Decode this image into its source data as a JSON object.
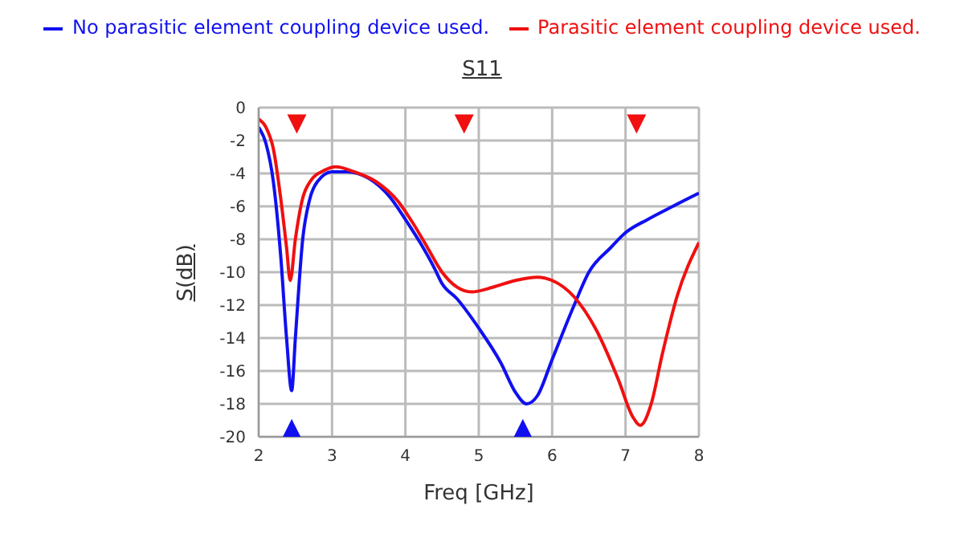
{
  "chart_data": {
    "type": "line",
    "title": "S11",
    "xlabel": "Freq [GHz]",
    "ylabel": "S(dB)",
    "xlim": [
      2,
      8
    ],
    "xticks": [
      2,
      3,
      4,
      5,
      6,
      7,
      8
    ],
    "ylim": [
      -20,
      0
    ],
    "yticks": [
      0,
      -2,
      -4,
      -6,
      -8,
      -10,
      -12,
      -14,
      -16,
      -18,
      -20
    ],
    "grid": true,
    "legend": "top",
    "marker": "none",
    "line_style": "solid",
    "series": [
      {
        "name": "No parasitic element coupling device used.",
        "color": "#1010f0",
        "x": [
          2.0,
          2.1,
          2.2,
          2.3,
          2.38,
          2.45,
          2.5,
          2.6,
          2.7,
          2.8,
          3.0,
          3.2,
          3.5,
          3.8,
          4.0,
          4.2,
          4.4,
          4.5,
          4.7,
          5.0,
          5.3,
          5.5,
          5.65,
          5.8,
          6.0,
          6.3,
          6.5,
          6.8,
          7.0,
          7.3,
          7.6,
          8.0
        ],
        "values": [
          -1.2,
          -2.2,
          -4.5,
          -9,
          -14,
          -17.2,
          -14,
          -8,
          -5.5,
          -4.5,
          -3.9,
          -3.9,
          -4.3,
          -5.5,
          -6.8,
          -8.2,
          -9.8,
          -10.7,
          -11.6,
          -13.4,
          -15.5,
          -17.3,
          -18,
          -17.5,
          -15.3,
          -12,
          -10,
          -8.5,
          -7.6,
          -6.8,
          -6.1,
          -5.2
        ]
      },
      {
        "name": "Parasitic element coupling device used.",
        "color": "#f01010",
        "x": [
          2.0,
          2.1,
          2.2,
          2.3,
          2.38,
          2.43,
          2.5,
          2.6,
          2.7,
          2.9,
          3.05,
          3.3,
          3.6,
          3.9,
          4.1,
          4.3,
          4.5,
          4.7,
          4.9,
          5.2,
          5.5,
          5.8,
          6.0,
          6.3,
          6.6,
          6.9,
          7.1,
          7.2,
          7.35,
          7.5,
          7.7,
          8.0
        ],
        "values": [
          -0.7,
          -1.2,
          -2.5,
          -5.5,
          -8.5,
          -10.5,
          -8,
          -5.5,
          -4.5,
          -3.8,
          -3.6,
          -3.9,
          -4.5,
          -5.7,
          -7,
          -8.5,
          -10,
          -10.9,
          -11.2,
          -10.9,
          -10.5,
          -10.3,
          -10.5,
          -11.5,
          -13.5,
          -16.5,
          -18.8,
          -19.3,
          -18,
          -15,
          -11.5,
          -8.2
        ]
      },
      {
        "type": "scatter",
        "marker": "triangle",
        "color": "#f01010",
        "x": [
          2.52,
          4.8,
          7.15
        ],
        "values": [
          -1,
          -1,
          -1
        ]
      },
      {
        "type": "scatter",
        "marker": "triangle",
        "color": "#1010f0",
        "x": [
          2.45,
          5.6
        ],
        "values": [
          -19.5,
          -19.5
        ]
      }
    ]
  }
}
